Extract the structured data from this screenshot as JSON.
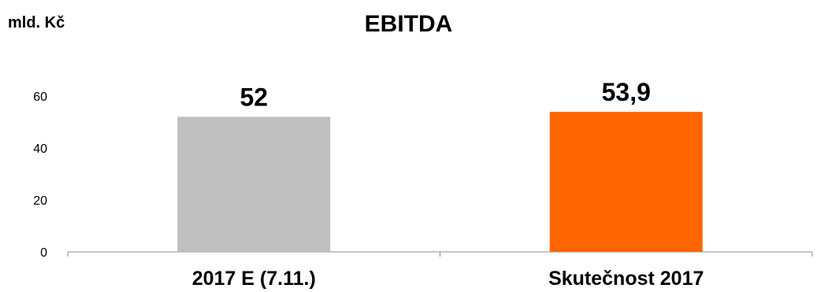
{
  "chart_data": {
    "type": "bar",
    "title": "EBITDA",
    "unit_label": "mld. Kč",
    "xlabel": "",
    "ylabel": "",
    "categories": [
      "2017 E (7.11.)",
      "Skutečnost 2017"
    ],
    "values": [
      52,
      53.9
    ],
    "data_labels": [
      "52",
      "53,9"
    ],
    "bar_colors": [
      "#bfbfbf",
      "#ff6600"
    ],
    "yticks": [
      0,
      20,
      40,
      60
    ],
    "ylim": [
      0,
      60
    ],
    "grid": false,
    "legend": "none"
  }
}
